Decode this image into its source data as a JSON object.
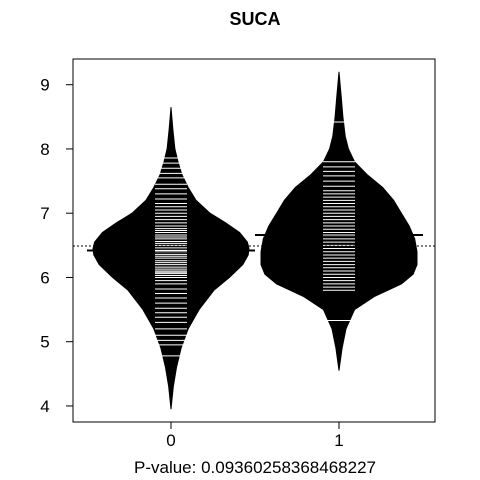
{
  "chart_data": {
    "type": "beanplot",
    "title": "SUCA",
    "xlabel": "P-value: 0.09360258368468227",
    "ylabel": "",
    "categories": [
      "0",
      "1"
    ],
    "yticks": [
      4,
      5,
      6,
      7,
      8,
      9
    ],
    "ylim": [
      3.75,
      9.4
    ],
    "overall_mean": 6.49,
    "groups": [
      {
        "name": "0",
        "mean": 6.42,
        "range": [
          3.95,
          8.65
        ],
        "density": [
          [
            3.95,
            0
          ],
          [
            4.3,
            0.03
          ],
          [
            4.6,
            0.07
          ],
          [
            4.9,
            0.13
          ],
          [
            5.2,
            0.22
          ],
          [
            5.5,
            0.36
          ],
          [
            5.8,
            0.55
          ],
          [
            6.0,
            0.75
          ],
          [
            6.2,
            0.92
          ],
          [
            6.35,
            0.99
          ],
          [
            6.45,
            1.0
          ],
          [
            6.55,
            0.98
          ],
          [
            6.7,
            0.88
          ],
          [
            6.85,
            0.7
          ],
          [
            7.0,
            0.5
          ],
          [
            7.2,
            0.32
          ],
          [
            7.4,
            0.22
          ],
          [
            7.6,
            0.14
          ],
          [
            7.8,
            0.09
          ],
          [
            8.0,
            0.05
          ],
          [
            8.3,
            0.025
          ],
          [
            8.65,
            0
          ]
        ],
        "observations": [
          4.78,
          4.95,
          5.02,
          5.1,
          5.2,
          5.3,
          5.38,
          5.45,
          5.52,
          5.6,
          5.68,
          5.75,
          5.82,
          5.9,
          5.95,
          6.0,
          6.03,
          6.06,
          6.08,
          6.1,
          6.13,
          6.16,
          6.2,
          6.23,
          6.26,
          6.3,
          6.33,
          6.36,
          6.4,
          6.43,
          6.46,
          6.5,
          6.53,
          6.56,
          6.6,
          6.63,
          6.66,
          6.7,
          6.73,
          6.76,
          6.8,
          6.85,
          6.9,
          6.95,
          7.0,
          7.05,
          7.1,
          7.15,
          7.22,
          7.3,
          7.38,
          7.45,
          7.55,
          7.62,
          7.7,
          7.78,
          7.86
        ]
      },
      {
        "name": "1",
        "mean": 6.66,
        "range": [
          4.55,
          9.2
        ],
        "density": [
          [
            4.55,
            0
          ],
          [
            4.9,
            0.04
          ],
          [
            5.2,
            0.09
          ],
          [
            5.5,
            0.2
          ],
          [
            5.7,
            0.45
          ],
          [
            5.9,
            0.8
          ],
          [
            6.05,
            0.95
          ],
          [
            6.2,
            1.0
          ],
          [
            6.4,
            1.0
          ],
          [
            6.6,
            0.97
          ],
          [
            6.8,
            0.9
          ],
          [
            7.0,
            0.8
          ],
          [
            7.2,
            0.7
          ],
          [
            7.4,
            0.56
          ],
          [
            7.6,
            0.36
          ],
          [
            7.8,
            0.2
          ],
          [
            8.0,
            0.12
          ],
          [
            8.2,
            0.08
          ],
          [
            8.5,
            0.05
          ],
          [
            8.8,
            0.03
          ],
          [
            9.2,
            0
          ]
        ],
        "observations": [
          5.33,
          5.8,
          5.85,
          5.9,
          5.95,
          6.0,
          6.05,
          6.1,
          6.15,
          6.2,
          6.25,
          6.3,
          6.35,
          6.4,
          6.45,
          6.5,
          6.55,
          6.6,
          6.65,
          6.7,
          6.75,
          6.8,
          6.85,
          6.9,
          6.95,
          7.0,
          7.05,
          7.1,
          7.15,
          7.2,
          7.25,
          7.3,
          7.35,
          7.42,
          7.5,
          7.58,
          7.65,
          7.72,
          7.8,
          8.42
        ]
      }
    ]
  }
}
